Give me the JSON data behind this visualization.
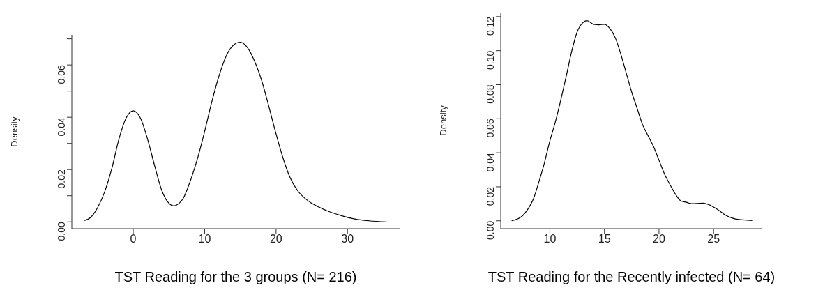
{
  "chart_data": [
    {
      "type": "line",
      "xlabel": "TST Reading for the 3 groups (N= 216)",
      "ylabel": "Density",
      "marker": "none",
      "grid": false,
      "color": "#000000",
      "xlim": [
        -8.6,
        37.3
      ],
      "ylim": [
        -0.0026,
        0.0715
      ],
      "xticks": [
        0,
        10,
        20,
        30
      ],
      "yticks": [
        {
          "value": 0,
          "label": "0.00"
        },
        {
          "value": 0.01,
          "label": null
        },
        0.02,
        {
          "value": 0.03,
          "label": null
        },
        0.04,
        {
          "value": 0.05,
          "label": null
        },
        0.06,
        {
          "value": 0.07,
          "label": null
        }
      ],
      "x": [
        -6.9,
        -6,
        -5,
        -4,
        -3,
        -2,
        -1,
        0,
        1,
        2,
        3,
        4,
        5,
        5.7,
        6.5,
        7,
        8,
        9,
        10,
        11,
        12,
        13,
        14,
        15,
        16,
        17,
        18,
        19,
        20,
        21,
        22,
        23,
        24,
        25,
        27,
        29,
        31,
        33,
        35.5
      ],
      "values": [
        0.0005,
        0.0016,
        0.0054,
        0.0115,
        0.0204,
        0.0317,
        0.0397,
        0.0425,
        0.0397,
        0.0317,
        0.0214,
        0.012,
        0.0071,
        0.0061,
        0.0073,
        0.009,
        0.0157,
        0.0242,
        0.0346,
        0.0459,
        0.0557,
        0.0633,
        0.0675,
        0.0687,
        0.0666,
        0.0614,
        0.0539,
        0.044,
        0.0336,
        0.0242,
        0.0167,
        0.012,
        0.0091,
        0.0071,
        0.0044,
        0.0025,
        0.0011,
        0.0004,
        0
      ]
    },
    {
      "type": "line",
      "xlabel": "TST Reading for the Recently infected (N= 64)",
      "ylabel": "Density",
      "marker": "none",
      "grid": false,
      "color": "#000000",
      "xlim": [
        5.5,
        29.46
      ],
      "ylim": [
        -0.0046,
        0.1224
      ],
      "xticks": [
        10,
        15,
        20,
        25
      ],
      "yticks": [
        {
          "value": 0,
          "label": "0.00"
        },
        0.02,
        0.04,
        0.06,
        0.08,
        {
          "value": 0.1,
          "label": "0.10"
        },
        0.12
      ],
      "x": [
        6.5,
        7.5,
        8,
        8.5,
        9,
        9.5,
        10,
        10.5,
        11,
        11.5,
        12,
        12.5,
        13,
        13.4,
        14,
        14.5,
        15,
        15.5,
        16,
        16.5,
        17,
        17.5,
        18,
        18.5,
        19,
        19.5,
        20,
        20.5,
        21,
        21.5,
        22,
        22.5,
        23,
        24,
        24.5,
        25,
        25.5,
        26,
        26.5,
        27,
        28.6
      ],
      "values": [
        0,
        0.003,
        0.007,
        0.013,
        0.023,
        0.034,
        0.047,
        0.058,
        0.071,
        0.085,
        0.0996,
        0.111,
        0.1163,
        0.1176,
        0.1155,
        0.1152,
        0.1155,
        0.113,
        0.1075,
        0.098,
        0.0868,
        0.0756,
        0.066,
        0.0564,
        0.05,
        0.0436,
        0.0356,
        0.0276,
        0.0213,
        0.0157,
        0.0117,
        0.0109,
        0.0101,
        0.0104,
        0.0097,
        0.0081,
        0.0061,
        0.0037,
        0.0021,
        0.0011,
        0.0002
      ]
    }
  ]
}
